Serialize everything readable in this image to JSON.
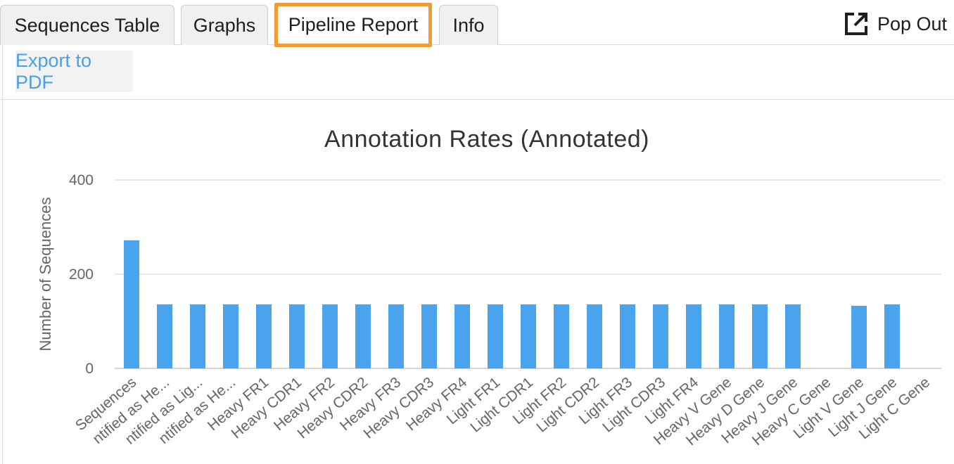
{
  "tabs": [
    {
      "label": "Sequences Table",
      "active": false
    },
    {
      "label": "Graphs",
      "active": false
    },
    {
      "label": "Pipeline Report",
      "active": true
    },
    {
      "label": "Info",
      "active": false
    }
  ],
  "popout": {
    "label": "Pop Out",
    "icon": "external-link-icon"
  },
  "toolbar": {
    "export_label": "Export to PDF"
  },
  "colors": {
    "bar": "#4aa3ed",
    "active_tab_border": "#f29b38",
    "link": "#4a9fe6"
  },
  "chart_data": {
    "type": "bar",
    "title": "Annotation Rates (Annotated)",
    "xlabel": "",
    "ylabel": "Number of Sequences",
    "ylim": [
      0,
      400
    ],
    "yticks": [
      0,
      200,
      400
    ],
    "grid": true,
    "categories": [
      "Sequences",
      "ntified as He...",
      "ntified as Lig...",
      "ntified as He...",
      "Heavy FR1",
      "Heavy CDR1",
      "Heavy FR2",
      "Heavy CDR2",
      "Heavy FR3",
      "Heavy CDR3",
      "Heavy FR4",
      "Light FR1",
      "Light CDR1",
      "Light FR2",
      "Light CDR2",
      "Light FR3",
      "Light CDR3",
      "Light FR4",
      "Heavy V Gene",
      "Heavy D Gene",
      "Heavy J Gene",
      "Heavy C Gene",
      "Light V Gene",
      "Light J Gene",
      "Light C Gene"
    ],
    "values": [
      272,
      136,
      136,
      136,
      136,
      136,
      136,
      136,
      136,
      136,
      136,
      136,
      136,
      136,
      136,
      136,
      136,
      136,
      136,
      136,
      136,
      0,
      133,
      136,
      0
    ]
  }
}
